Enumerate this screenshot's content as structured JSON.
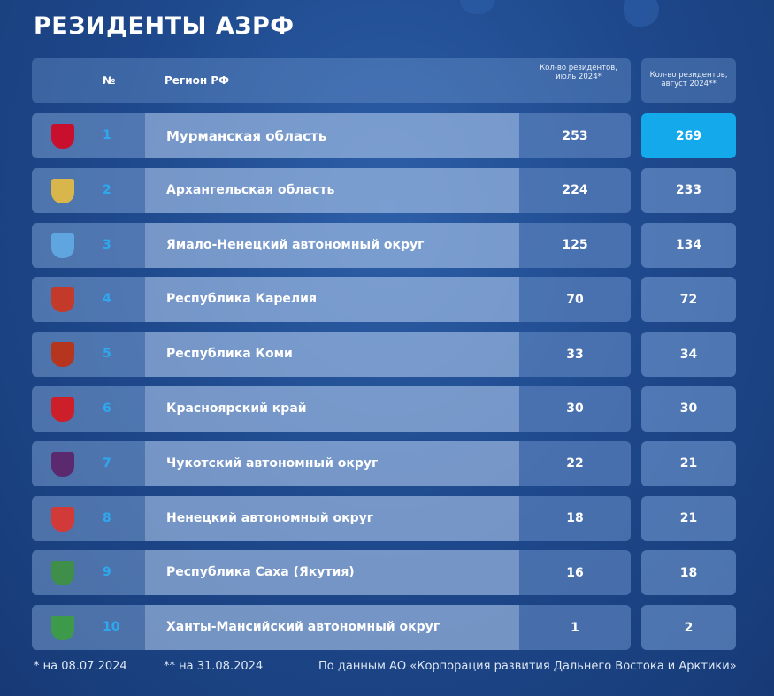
{
  "title": "РЕЗИДЕНТЫ АЗРФ",
  "header": {
    "num": "№",
    "region": "Регион РФ",
    "july": "Кол-во резидентов, июль 2024*",
    "august": "Кол-во резидентов, август 2024**"
  },
  "rows": [
    {
      "num": "1",
      "region": "Мурманская область",
      "july": "253",
      "august": "269",
      "emblem_color": "#c8102e",
      "emblem_icon": "murmansk-emblem-icon"
    },
    {
      "num": "2",
      "region": "Архангельская область",
      "july": "224",
      "august": "233",
      "emblem_color": "#d9b64c",
      "emblem_icon": "arkhangelsk-emblem-icon"
    },
    {
      "num": "3",
      "region": "Ямало-Ненецкий автономный округ",
      "july": "125",
      "august": "134",
      "emblem_color": "#5fa6e0",
      "emblem_icon": "yamal-emblem-icon"
    },
    {
      "num": "4",
      "region": "Республика Карелия",
      "july": "70",
      "august": "72",
      "emblem_color": "#c43a2a",
      "emblem_icon": "karelia-emblem-icon"
    },
    {
      "num": "5",
      "region": "Республика Коми",
      "july": "33",
      "august": "34",
      "emblem_color": "#b5351f",
      "emblem_icon": "komi-emblem-icon"
    },
    {
      "num": "6",
      "region": "Красноярский край",
      "july": "30",
      "august": "30",
      "emblem_color": "#cc1f2a",
      "emblem_icon": "krasnoyarsk-emblem-icon"
    },
    {
      "num": "7",
      "region": "Чукотский автономный округ",
      "july": "22",
      "august": "21",
      "emblem_color": "#5b2a6e",
      "emblem_icon": "chukotka-emblem-icon"
    },
    {
      "num": "8",
      "region": "Ненецкий автономный округ",
      "july": "18",
      "august": "21",
      "emblem_color": "#d23a3a",
      "emblem_icon": "nenets-emblem-icon"
    },
    {
      "num": "9",
      "region": "Республика Саха (Якутия)",
      "july": "16",
      "august": "18",
      "emblem_color": "#3f8f4a",
      "emblem_icon": "yakutia-emblem-icon"
    },
    {
      "num": "10",
      "region": "Ханты-Мансийский автономный округ",
      "july": "1",
      "august": "2",
      "emblem_color": "#3c9a4a",
      "emblem_icon": "khmao-emblem-icon"
    }
  ],
  "footnotes": {
    "july_note": "* на 08.07.2024",
    "august_note": "** на 31.08.2024",
    "source": "По данным АО «Корпорация развития Дальнего Востока и Арктики»"
  },
  "colors": {
    "background": "#1f4a8e",
    "number_accent": "#2ea8ee",
    "highlight": "#13a9ea"
  }
}
